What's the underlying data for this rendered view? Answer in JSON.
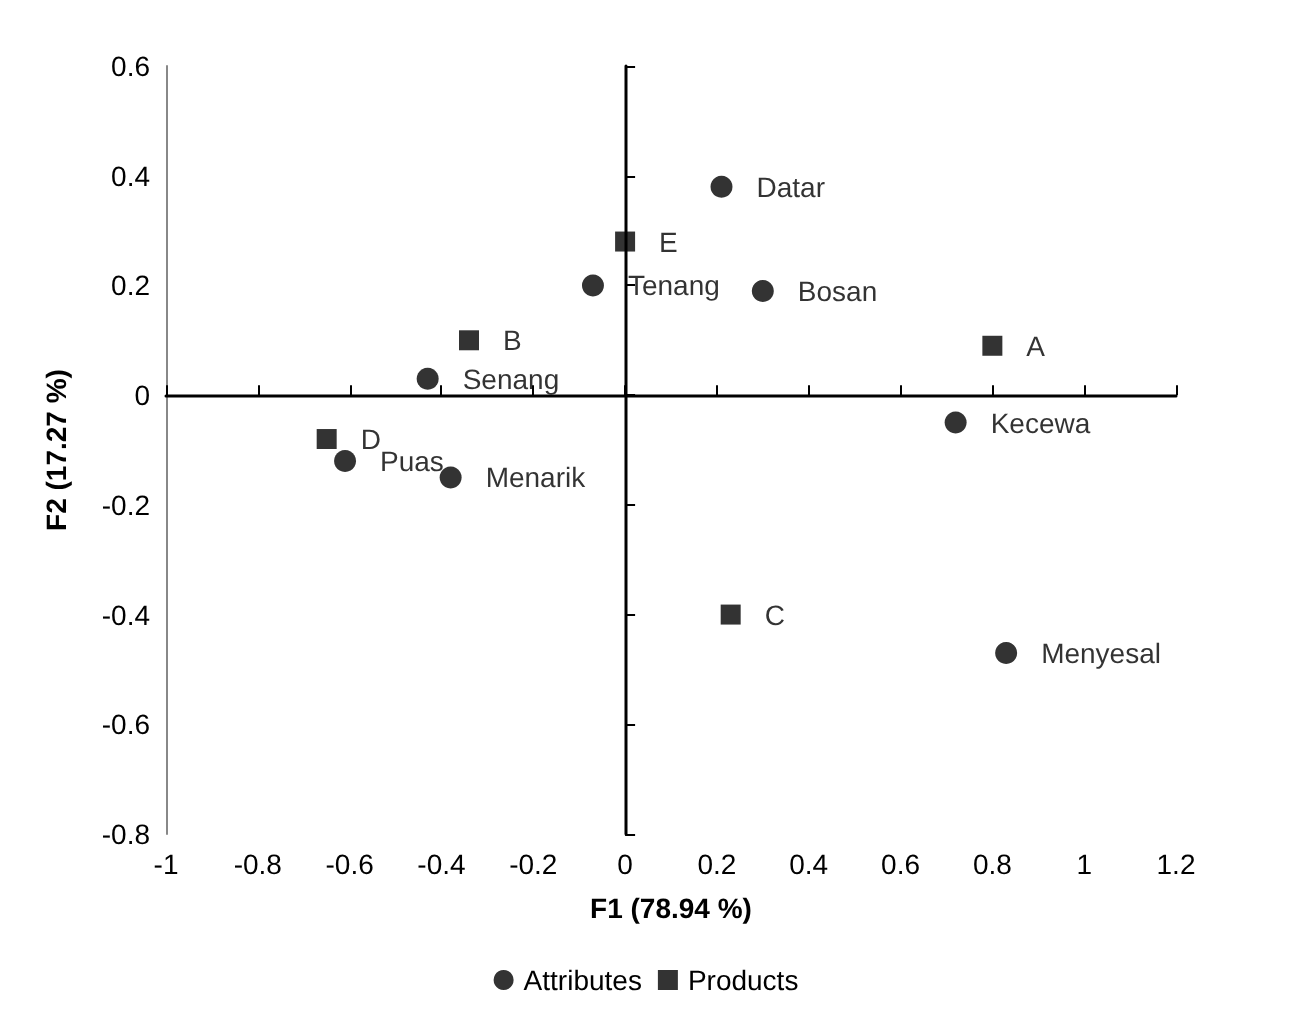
{
  "chart_data": {
    "type": "scatter",
    "xlabel": "F1 (78.94 %)",
    "ylabel": "F2 (17.27 %)",
    "legend": "bottom",
    "xlim": [
      -1,
      1.2
    ],
    "xticks": [
      -1,
      -0.8,
      -0.6,
      -0.4,
      -0.2,
      0,
      0.2,
      0.4,
      0.6,
      0.8,
      1,
      1.2
    ],
    "ylim": [
      -0.8,
      0.6
    ],
    "yticks": [
      -0.8,
      -0.6,
      -0.4,
      -0.2,
      0,
      0.2,
      0.4,
      0.6
    ],
    "series": [
      {
        "name": "Attributes",
        "color": "#000000",
        "marker": "circle",
        "x": [
          0.21,
          0.3,
          -0.07,
          -0.43,
          -0.61,
          -0.38,
          0.72,
          0.83
        ],
        "values": [
          0.38,
          0.19,
          0.2,
          0.03,
          -0.12,
          -0.15,
          -0.05,
          -0.47
        ],
        "value_labels": [
          "Datar",
          "Bosan",
          "Tenang",
          "Senang",
          "Puas",
          "Menarik",
          "Kecewa",
          "Menyesal"
        ]
      },
      {
        "name": "Products",
        "color": "#000000",
        "marker": "square",
        "x": [
          0.8,
          -0.34,
          0.23,
          -0.65,
          0.0
        ],
        "values": [
          0.09,
          0.1,
          -0.4,
          -0.08,
          0.28
        ],
        "value_labels": [
          "A",
          "B",
          "C",
          "D",
          "E"
        ]
      }
    ]
  }
}
